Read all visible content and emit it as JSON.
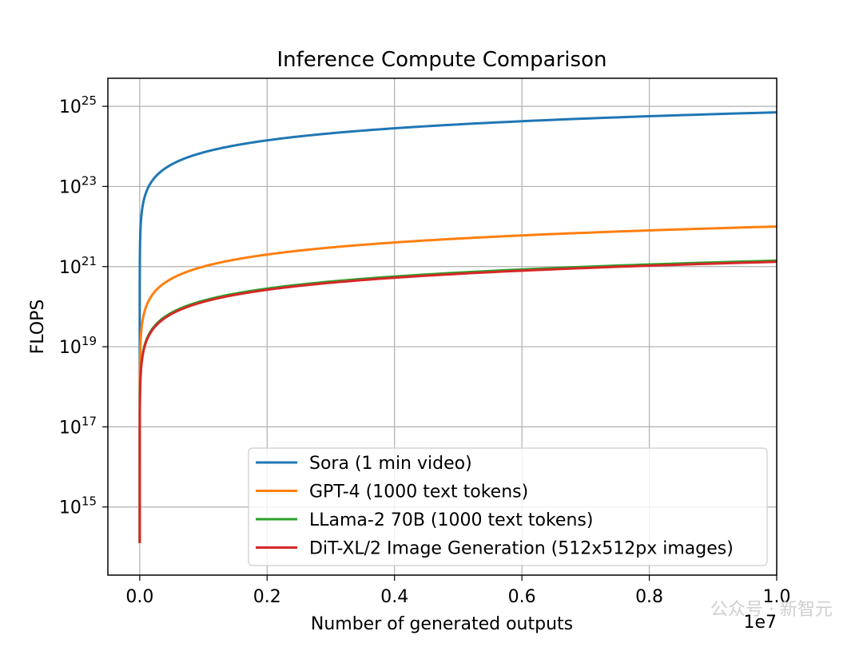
{
  "chart_data": {
    "type": "line",
    "title": "Inference Compute Comparison",
    "xlabel": "Number of generated outputs",
    "ylabel": "FLOPS",
    "x_offset_label": "1e7",
    "xlim": [
      -0.05,
      1.0
    ],
    "x_ticks": [
      0.0,
      0.2,
      0.4,
      0.6,
      0.8,
      1.0
    ],
    "x_tick_labels": [
      "0.0",
      "0.2",
      "0.4",
      "0.6",
      "0.8",
      "1.0"
    ],
    "y_scale": "log",
    "ylim_exp": [
      13.3,
      25.7
    ],
    "y_tick_exps": [
      15,
      17,
      19,
      21,
      23,
      25
    ],
    "y_tick_base": "10",
    "grid": true,
    "legend_position": "lower right",
    "series": [
      {
        "name": "Sora (1 min video)",
        "color": "#1f77b4",
        "log10_flops_at_1e7": 24.85,
        "min_log10": 14.1
      },
      {
        "name": "GPT-4 (1000 text tokens)",
        "color": "#ff7f0e",
        "log10_flops_at_1e7": 22.0,
        "min_log10": 14.1
      },
      {
        "name": "LLama-2 70B (1000 text tokens)",
        "color": "#2ca02c",
        "log10_flops_at_1e7": 21.15,
        "min_log10": 14.1
      },
      {
        "name": "DiT-XL/2 Image Generation (512x512px images)",
        "color": "#d62728",
        "log10_flops_at_1e7": 21.12,
        "min_log10": 14.1
      }
    ]
  },
  "watermark": "公众号 · 新智元"
}
